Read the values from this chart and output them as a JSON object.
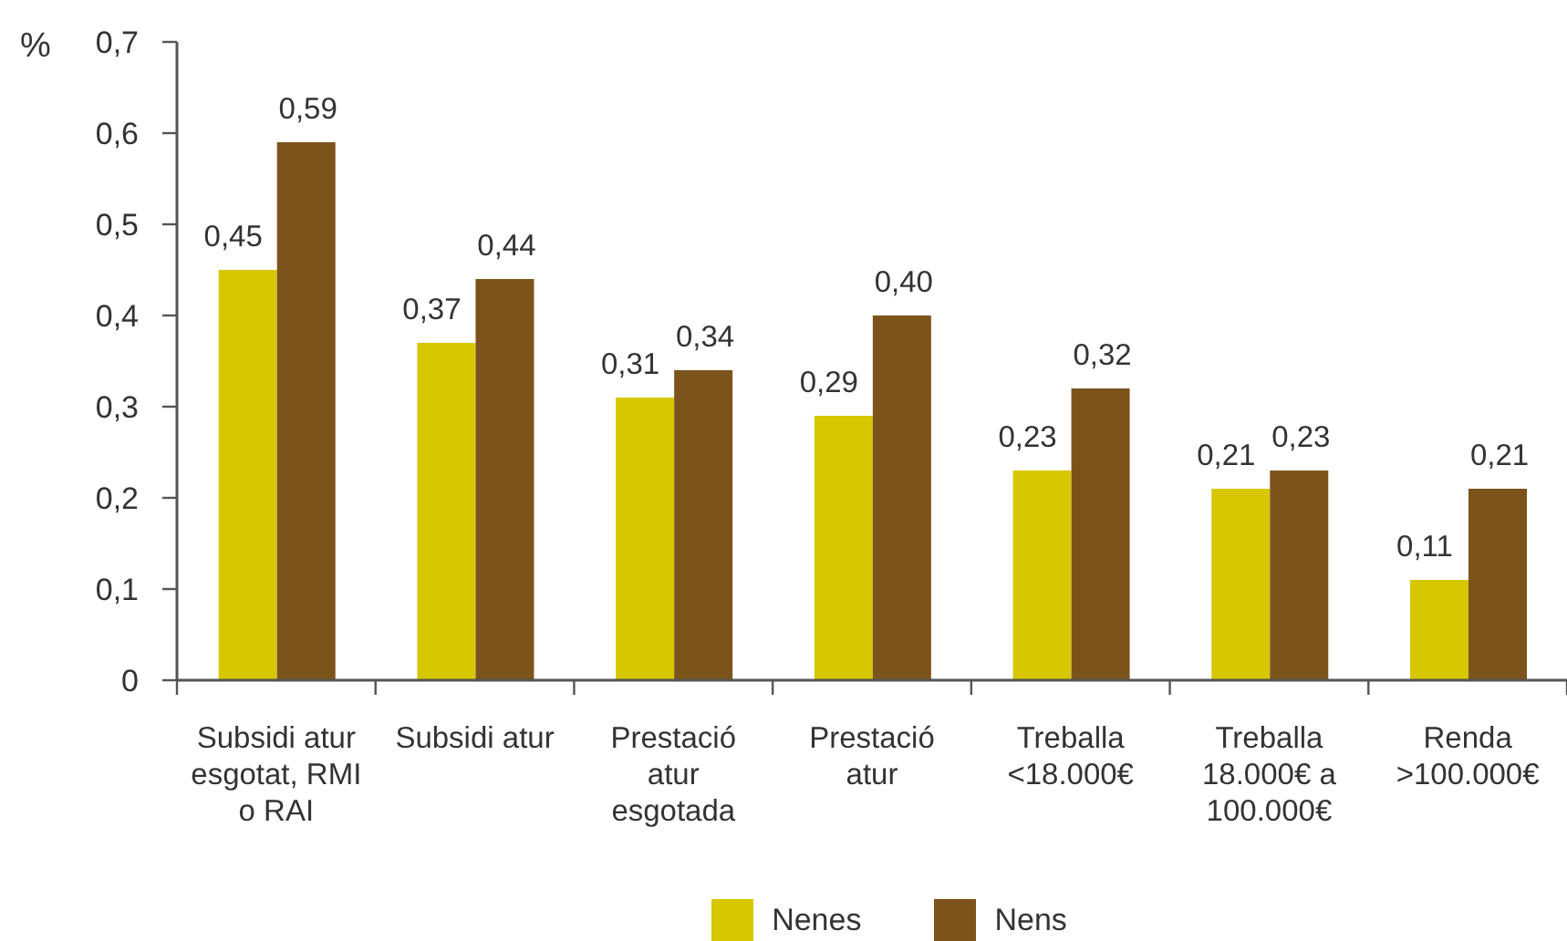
{
  "chart_data": {
    "type": "bar",
    "ylabel": "%",
    "categories": [
      "Subsidi atur esgotat, RMI o RAI",
      "Subsidi atur",
      "Prestació atur esgotada",
      "Prestació atur",
      "Treballa <18.000€",
      "Treballa 18.000€ a 100.000€",
      "Renda >100.000€"
    ],
    "series": [
      {
        "name": "Nenes",
        "color": "#d6c700",
        "values": [
          0.45,
          0.37,
          0.31,
          0.29,
          0.23,
          0.21,
          0.11
        ],
        "value_labels": [
          "0,45",
          "0,37",
          "0,31",
          "0,29",
          "0,23",
          "0,21",
          "0,11"
        ]
      },
      {
        "name": "Nens",
        "color": "#7d531c",
        "values": [
          0.59,
          0.44,
          0.34,
          0.4,
          0.32,
          0.23,
          0.21
        ],
        "value_labels": [
          "0,59",
          "0,44",
          "0,34",
          "0,40",
          "0,32",
          "0,23",
          "0,21"
        ]
      }
    ],
    "ylim": [
      0,
      0.7
    ],
    "yticks": [
      0,
      {
        "value": 0.1,
        "label": "0,1"
      },
      {
        "value": 0.2,
        "label": "0,2"
      },
      {
        "value": 0.3,
        "label": "0,3"
      },
      {
        "value": 0.4,
        "label": "0,4"
      },
      {
        "value": 0.5,
        "label": "0,5"
      },
      {
        "value": 0.6,
        "label": "0,6"
      },
      {
        "value": 0.7,
        "label": "0,7"
      }
    ],
    "legend": "bottom"
  }
}
